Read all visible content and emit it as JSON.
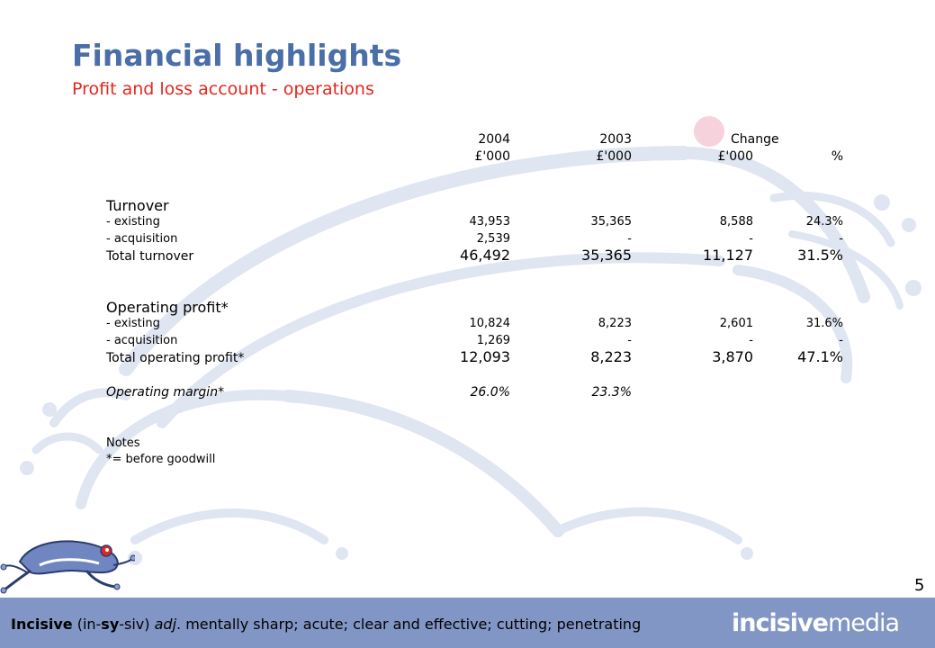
{
  "slide": {
    "title": "Financial highlights",
    "subtitle": "Profit and loss account - operations",
    "page_number": "5"
  },
  "table": {
    "headers": {
      "year_2004": "2004",
      "year_2003": "2003",
      "change": "Change",
      "unit_2004": "£'000",
      "unit_2003": "£'000",
      "unit_change": "£'000",
      "unit_pct": "%"
    },
    "turnover": {
      "heading": "Turnover",
      "rows": [
        {
          "label": " - existing",
          "v2004": "43,953",
          "v2003": "35,365",
          "change": "8,588",
          "pct": "24.3%"
        },
        {
          "label": " - acquisition",
          "v2004": "2,539",
          "v2003": "-",
          "change": "-",
          "pct": "-"
        }
      ],
      "total": {
        "label": "Total turnover",
        "v2004": "46,492",
        "v2003": "35,365",
        "change": "11,127",
        "pct": "31.5%"
      }
    },
    "operating_profit": {
      "heading": "Operating profit*",
      "rows": [
        {
          "label": " - existing",
          "v2004": "10,824",
          "v2003": "8,223",
          "change": "2,601",
          "pct": "31.6%"
        },
        {
          "label": " - acquisition",
          "v2004": "1,269",
          "v2003": "-",
          "change": "-",
          "pct": "-"
        }
      ],
      "total": {
        "label": "Total operating profit*",
        "v2004": "12,093",
        "v2003": "8,223",
        "change": "3,870",
        "pct": "47.1%"
      }
    },
    "margin": {
      "label": "Operating margin*",
      "v2004": "26.0%",
      "v2003": "23.3%"
    },
    "notes": {
      "heading": "Notes",
      "line1": "*= before goodwill"
    }
  },
  "footer": {
    "word": "Incisive",
    "pron_open": " (in-",
    "pron_stress": "sy",
    "pron_close": "-siv) ",
    "pos": "adj",
    "definition": ". mentally sharp; acute; clear and effective; cutting; penetrating",
    "brand_bold": "incisive",
    "brand_rest": "media",
    "bg_color": "#8196c4"
  },
  "colors": {
    "title": "#4a6ea8",
    "subtitle": "#e0281e",
    "watermark": "#dfe5f1"
  }
}
